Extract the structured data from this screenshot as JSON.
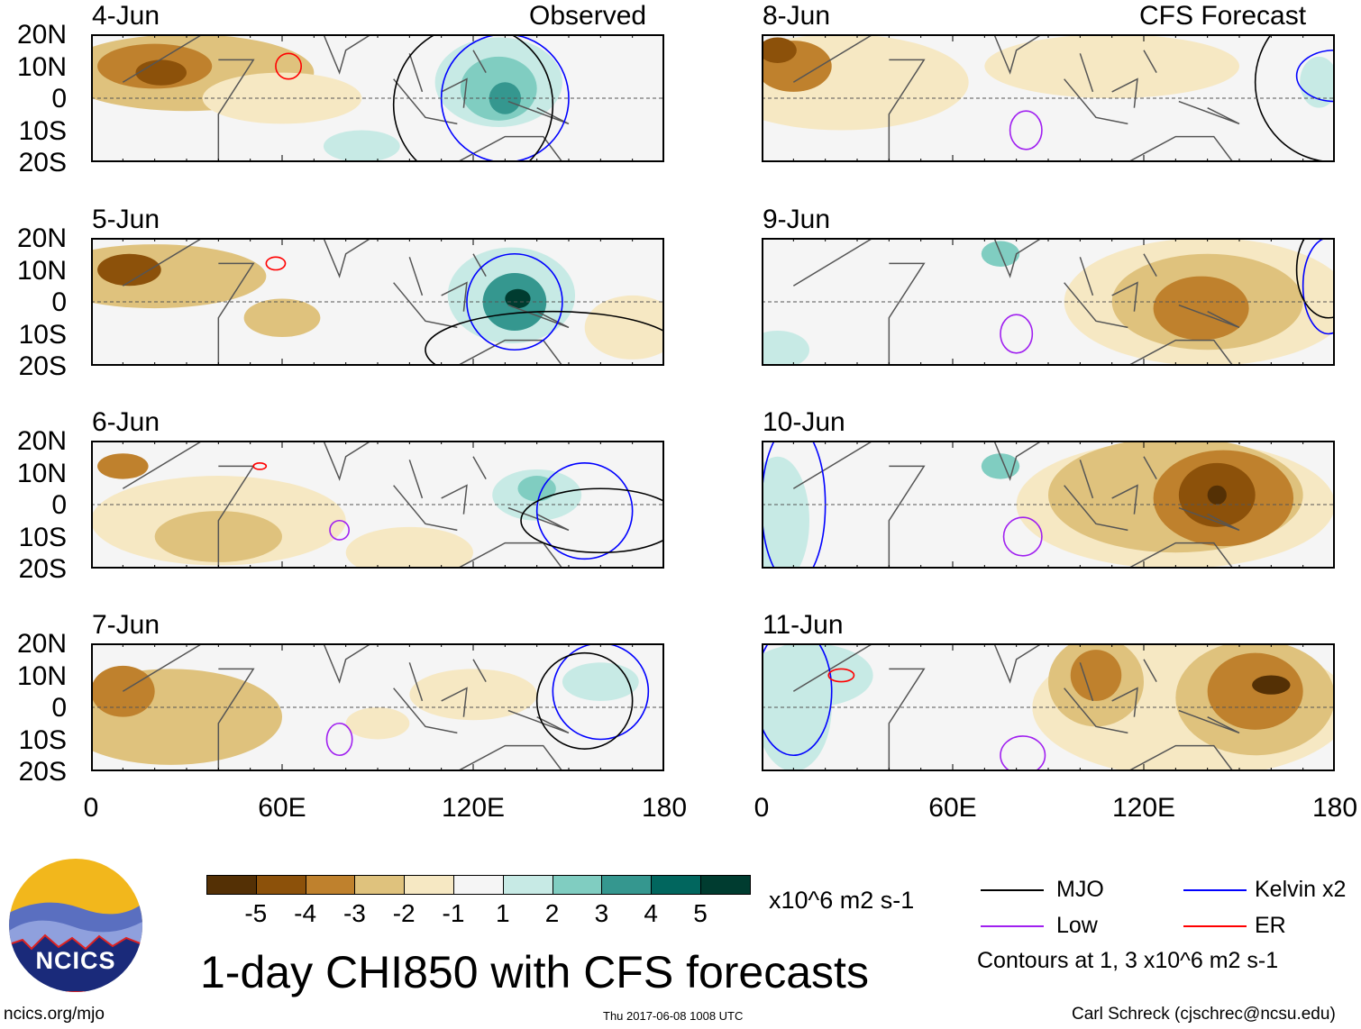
{
  "title": "1-day CHI850 with CFS forecasts",
  "units": "x10^6 m2 s-1",
  "left_header": "Observed",
  "right_header": "CFS Forecast",
  "left_panels": [
    "4-Jun",
    "5-Jun",
    "6-Jun",
    "7-Jun"
  ],
  "right_panels": [
    "8-Jun",
    "9-Jun",
    "10-Jun",
    "11-Jun"
  ],
  "lat_labels": [
    "20N",
    "10N",
    "0",
    "10S",
    "20S"
  ],
  "lon_labels": [
    "0",
    "60E",
    "120E",
    "180"
  ],
  "colorbar": {
    "labels": [
      "-5",
      "-4",
      "-3",
      "-2",
      "-1",
      "1",
      "2",
      "3",
      "4",
      "5"
    ],
    "colors": [
      "#543005",
      "#8c510a",
      "#bf812d",
      "#dfc27d",
      "#f6e8c3",
      "#f5f5f5",
      "#c7eae5",
      "#80cdc1",
      "#35978f",
      "#01665e",
      "#003c30"
    ]
  },
  "legend": {
    "items": [
      {
        "label": "MJO",
        "color": "#000000"
      },
      {
        "label": "Kelvin x2",
        "color": "#0000ff"
      },
      {
        "label": "Low",
        "color": "#a020f0"
      },
      {
        "label": "ER",
        "color": "#ff0000"
      }
    ],
    "note": "Contours at 1, 3 x10^6 m2 s-1"
  },
  "logo_text": "NCICS",
  "footer": {
    "left": "ncics.org/mjo",
    "center": "Thu 2017-06-08 1008 UTC",
    "right": "Carl Schreck (cjschrec@ncsu.edu)"
  }
}
